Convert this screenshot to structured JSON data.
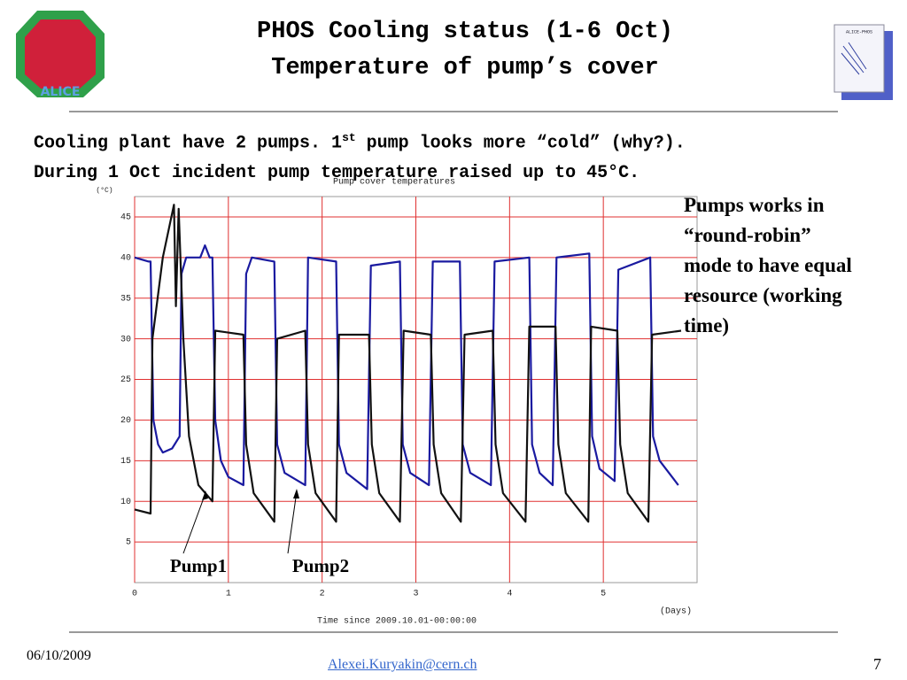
{
  "header": {
    "title_line1": "PHOS Cooling status (1-6 Oct)",
    "title_line2": "Temperature of pump’s cover",
    "logo_left": "ALICE",
    "logo_right": "ALICE-PHOS"
  },
  "body": {
    "line1_before": "Cooling plant have 2 pumps. 1",
    "line1_sup": "st",
    "line1_after": " pump looks more “cold” (why?).",
    "line2": "During 1 Oct incident pump temperature raised up to 45°C."
  },
  "side_note": "Pumps works in “round-robin” mode to have equal resource (working time)",
  "footer": {
    "date": "06/10/2009",
    "email": "Alexei.Kuryakin@cern.ch",
    "page": "7"
  },
  "chart_data": {
    "type": "line",
    "title": "Pump cover temperatures",
    "y_unit": "(°C)",
    "x_label": "Time since 2009.10.01-00:00:00",
    "x_unit": "(Days)",
    "xlim": [
      0,
      6
    ],
    "xticks": [
      0,
      1,
      2,
      3,
      4,
      5
    ],
    "ylim": [
      0,
      47.5
    ],
    "yticks": [
      5,
      10,
      15,
      20,
      25,
      30,
      35,
      40,
      45
    ],
    "grid": true,
    "grid_color": "#e03030",
    "series": [
      {
        "name": "Pump2",
        "color": "#1a1aa0",
        "x": [
          0,
          0.15,
          0.17,
          0.2,
          0.25,
          0.3,
          0.4,
          0.48,
          0.5,
          0.55,
          0.7,
          0.75,
          0.8,
          0.83,
          0.86,
          0.92,
          1.0,
          1.16,
          1.19,
          1.25,
          1.49,
          1.52,
          1.6,
          1.82,
          1.85,
          2.15,
          2.18,
          2.26,
          2.48,
          2.52,
          2.83,
          2.86,
          2.94,
          3.14,
          3.18,
          3.47,
          3.5,
          3.58,
          3.8,
          3.84,
          4.21,
          4.24,
          4.32,
          4.46,
          4.5,
          4.85,
          4.88,
          4.96,
          5.12,
          5.16,
          5.5,
          5.53,
          5.6,
          5.8
        ],
        "values": [
          40,
          39.5,
          39.5,
          20,
          17,
          16,
          16.5,
          18,
          38,
          40,
          40,
          41.5,
          40,
          40,
          20,
          15,
          13,
          12,
          38,
          40,
          39.5,
          17,
          13.5,
          12,
          40,
          39.5,
          17,
          13.5,
          11.5,
          39,
          39.5,
          17,
          13.5,
          12,
          39.5,
          39.5,
          17,
          13.5,
          12,
          39.5,
          40,
          17,
          13.5,
          12,
          40,
          40.5,
          18,
          14,
          12.5,
          38.5,
          40,
          18,
          15,
          12
        ]
      },
      {
        "name": "Pump1",
        "color": "#111111",
        "x": [
          0,
          0.17,
          0.19,
          0.3,
          0.42,
          0.44,
          0.47,
          0.52,
          0.58,
          0.68,
          0.83,
          0.86,
          1.16,
          1.19,
          1.27,
          1.49,
          1.52,
          1.82,
          1.85,
          1.93,
          2.15,
          2.18,
          2.5,
          2.53,
          2.61,
          2.83,
          2.87,
          3.16,
          3.19,
          3.27,
          3.48,
          3.52,
          3.82,
          3.85,
          3.93,
          4.17,
          4.21,
          4.49,
          4.52,
          4.6,
          4.84,
          4.87,
          5.15,
          5.18,
          5.26,
          5.48,
          5.52,
          5.83
        ],
        "values": [
          9,
          8.5,
          30,
          40,
          46.5,
          34,
          46,
          30,
          18,
          12,
          10,
          31,
          30.5,
          17,
          11,
          7.5,
          30,
          31,
          17,
          11,
          7.5,
          30.5,
          30.5,
          17,
          11,
          7.5,
          31,
          30.5,
          17,
          11,
          7.5,
          30.5,
          31,
          17,
          11,
          7.5,
          31.5,
          31.5,
          17,
          11,
          7.5,
          31.5,
          31,
          17,
          11,
          7.5,
          30.5,
          31
        ]
      }
    ]
  }
}
